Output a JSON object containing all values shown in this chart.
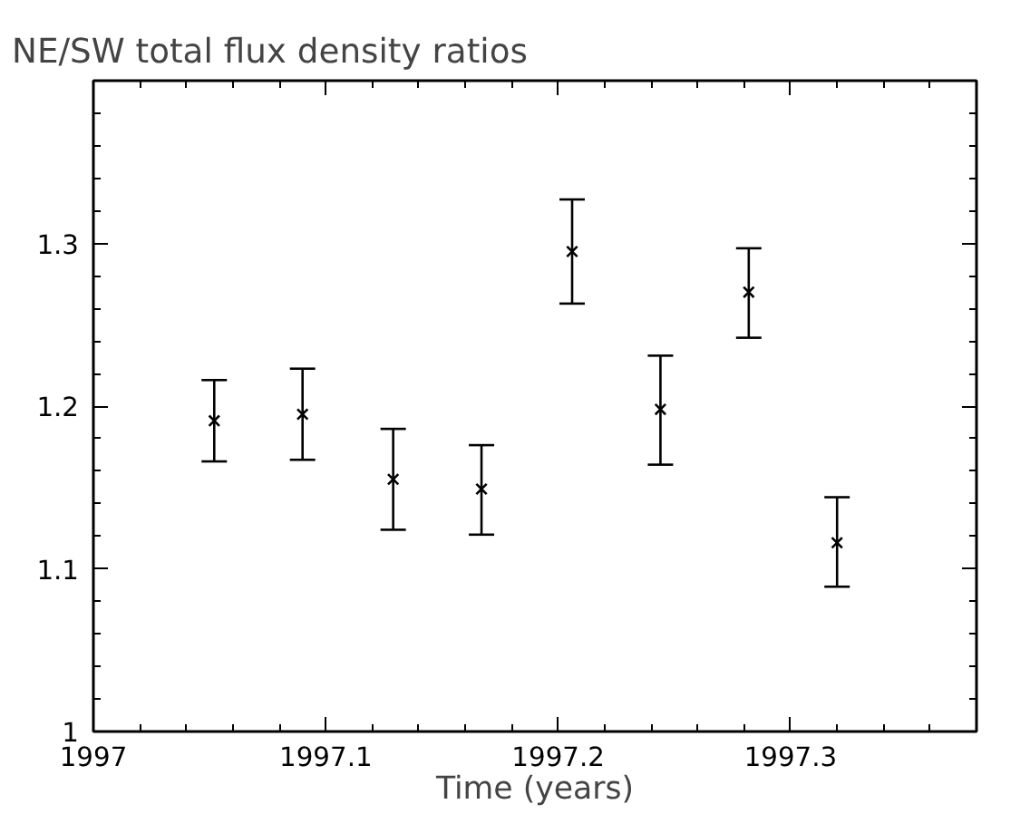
{
  "chart_data": {
    "type": "scatter",
    "title": "NE/SW total flux density ratios",
    "xlabel": "Time (years)",
    "x": [
      1997.052,
      1997.09,
      1997.129,
      1997.167,
      1997.206,
      1997.244,
      1997.282,
      1997.32
    ],
    "values": [
      1.191,
      1.195,
      1.155,
      1.149,
      1.295,
      1.198,
      1.27,
      1.116
    ],
    "errors": [
      [
        1.166,
        1.216
      ],
      [
        1.167,
        1.223
      ],
      [
        1.124,
        1.186
      ],
      [
        1.121,
        1.176
      ],
      [
        1.263,
        1.327
      ],
      [
        1.164,
        1.231
      ],
      [
        1.242,
        1.297
      ],
      [
        1.089,
        1.144
      ]
    ],
    "color": "#000000",
    "marker": "cross",
    "grid": false,
    "xlim": [
      1997,
      1997.38
    ],
    "ylim": [
      1,
      1.4
    ],
    "xticks": [
      {
        "value": 1997,
        "label": "1997"
      },
      {
        "value": 1997.02,
        "label": null
      },
      {
        "value": 1997.04,
        "label": null
      },
      {
        "value": 1997.06,
        "label": null
      },
      {
        "value": 1997.08,
        "label": null
      },
      {
        "value": 1997.1,
        "label": "1997.1"
      },
      {
        "value": 1997.12,
        "label": null
      },
      {
        "value": 1997.14,
        "label": null
      },
      {
        "value": 1997.16,
        "label": null
      },
      {
        "value": 1997.18,
        "label": null
      },
      {
        "value": 1997.2,
        "label": "1997.2"
      },
      {
        "value": 1997.22,
        "label": null
      },
      {
        "value": 1997.24,
        "label": null
      },
      {
        "value": 1997.26,
        "label": null
      },
      {
        "value": 1997.28,
        "label": null
      },
      {
        "value": 1997.3,
        "label": "1997.3"
      },
      {
        "value": 1997.32,
        "label": null
      },
      {
        "value": 1997.34,
        "label": null
      },
      {
        "value": 1997.36,
        "label": null
      }
    ],
    "yticks": [
      {
        "value": 1,
        "label": "1"
      },
      {
        "value": 1.02,
        "label": null
      },
      {
        "value": 1.04,
        "label": null
      },
      {
        "value": 1.06,
        "label": null
      },
      {
        "value": 1.08,
        "label": null
      },
      {
        "value": 1.1,
        "label": "1.1"
      },
      {
        "value": 1.12,
        "label": null
      },
      {
        "value": 1.14,
        "label": null
      },
      {
        "value": 1.16,
        "label": null
      },
      {
        "value": 1.18,
        "label": null
      },
      {
        "value": 1.2,
        "label": "1.2"
      },
      {
        "value": 1.22,
        "label": null
      },
      {
        "value": 1.24,
        "label": null
      },
      {
        "value": 1.26,
        "label": null
      },
      {
        "value": 1.28,
        "label": null
      },
      {
        "value": 1.3,
        "label": "1.3"
      },
      {
        "value": 1.32,
        "label": null
      },
      {
        "value": 1.34,
        "label": null
      },
      {
        "value": 1.36,
        "label": null
      },
      {
        "value": 1.38,
        "label": null
      }
    ]
  }
}
